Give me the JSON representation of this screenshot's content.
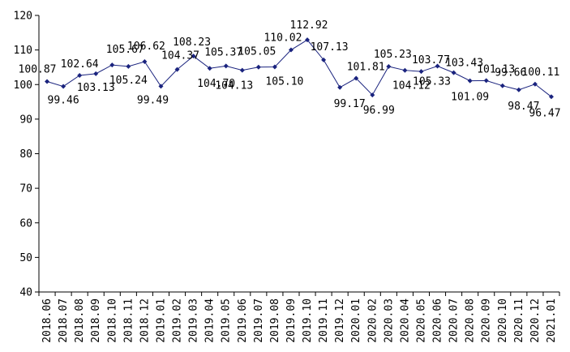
{
  "chart_data": {
    "type": "line",
    "title": "",
    "xlabel": "",
    "ylabel": "",
    "ylim": [
      40,
      120
    ],
    "yticks": [
      40,
      50,
      60,
      70,
      80,
      90,
      100,
      110,
      120
    ],
    "grid": false,
    "legend": "none",
    "line_color": "#1a237e",
    "categories": [
      "2018.06",
      "2018.07",
      "2018.08",
      "2018.09",
      "2018.10",
      "2018.11",
      "2018.12",
      "2019.01",
      "2019.02",
      "2019.03",
      "2019.04",
      "2019.05",
      "2019.06",
      "2019.07",
      "2019.08",
      "2019.09",
      "2019.10",
      "2019.11",
      "2019.12",
      "2020.01",
      "2020.02",
      "2020.03",
      "2020.04",
      "2020.05",
      "2020.06",
      "2020.07",
      "2020.08",
      "2020.09",
      "2020.10",
      "2020.11",
      "2020.12",
      "2021.01"
    ],
    "values": [
      100.87,
      99.46,
      102.64,
      103.13,
      105.67,
      105.24,
      106.62,
      99.49,
      104.37,
      108.23,
      104.7,
      105.37,
      104.13,
      105.05,
      105.1,
      110.02,
      112.92,
      107.13,
      99.17,
      101.81,
      96.99,
      105.23,
      104.12,
      103.77,
      105.33,
      103.43,
      101.09,
      101.13,
      99.66,
      98.47,
      100.11,
      96.47
    ],
    "data_labels": [
      "100.87",
      "99.46",
      "102.64",
      "103.13",
      "105.67",
      "105.24",
      "106.62",
      "99.49",
      "104.37",
      "108.23",
      "104.70",
      "105.37",
      "104.13",
      "105.05",
      "105.10",
      "110.02",
      "112.92",
      "107.13",
      "99.17",
      "101.81",
      "96.99",
      "105.23",
      "104.12",
      "103.77",
      "105.33",
      "103.43",
      "101.09",
      "101.13",
      "99.66",
      "98.47",
      "100.11",
      "96.47"
    ]
  }
}
